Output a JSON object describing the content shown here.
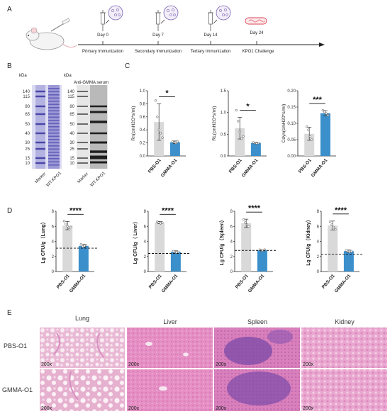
{
  "panelA": {
    "letter": "A",
    "days": [
      "Day 0",
      "Day 7",
      "Day 14",
      "Day 24"
    ],
    "stages": [
      "Primary Immunization",
      "Secondary Immunization",
      "Tertiary Immunization",
      "KPO1 Challenge"
    ]
  },
  "panelB": {
    "letter": "B",
    "kda_label": "kDa",
    "kda_ticks": [
      "140",
      "115",
      "80",
      "65",
      "50",
      "40",
      "30",
      "25",
      "15",
      "10"
    ],
    "gel1_lanes": [
      "Marker",
      "WT-KPO1"
    ],
    "gel2_title": "Anti-GMMA serum",
    "gel2_lanes": [
      "Marker",
      "WT-KPO1"
    ]
  },
  "panelC": {
    "letter": "C"
  },
  "panelD": {
    "letter": "D"
  },
  "panelE": {
    "letter": "E",
    "columns": [
      "Lung",
      "Liver",
      "Spleen",
      "Kidney"
    ],
    "rows": [
      "PBS-O1",
      "GMMA-O1"
    ],
    "magnification": "200x"
  },
  "chart_data": [
    {
      "type": "bar",
      "panel": "C",
      "categories": [
        "PBS-O1",
        "GMMA-O1"
      ],
      "values": [
        0.52,
        0.21
      ],
      "ylabel": "Rn(cmH2O*s/ml)",
      "ylim": [
        0,
        1.0
      ],
      "yticks": [
        "0.0",
        "0.2",
        "0.4",
        "0.6",
        "0.8",
        "1.0"
      ],
      "significance": "*",
      "colors": [
        "#d9d9d9",
        "#3b8fcb"
      ]
    },
    {
      "type": "bar",
      "panel": "C",
      "categories": [
        "PBS-O1",
        "GMMA-O1"
      ],
      "values": [
        0.64,
        0.3
      ],
      "ylabel": "RL(cmH2O*s/ml)",
      "ylim": [
        0,
        1.5
      ],
      "yticks": [
        "0.0",
        "0.5",
        "1.0",
        "1.5"
      ],
      "significance": "*",
      "colors": [
        "#d9d9d9",
        "#3b8fcb"
      ]
    },
    {
      "type": "bar",
      "panel": "C",
      "categories": [
        "PBS-O1",
        "GMMA-O1"
      ],
      "values": [
        0.068,
        0.131
      ],
      "ylabel": "Cdyn(cmH20*s/ml)",
      "ylim": [
        0,
        0.2
      ],
      "yticks": [
        "0.00",
        "0.05",
        "0.10",
        "0.15",
        "0.20"
      ],
      "significance": "***",
      "colors": [
        "#d9d9d9",
        "#3b8fcb"
      ]
    },
    {
      "type": "bar",
      "panel": "D",
      "categories": [
        "PBS-O1",
        "GMMA-O1"
      ],
      "values": [
        6.1,
        3.4
      ],
      "ylabel": "Lg CFU/g（Lung）",
      "ylim": [
        0,
        8
      ],
      "yticks": [
        "0",
        "2",
        "4",
        "6",
        "8"
      ],
      "threshold": 3.1,
      "significance": "****",
      "colors": [
        "#d9d9d9",
        "#3b8fcb"
      ]
    },
    {
      "type": "bar",
      "panel": "D",
      "categories": [
        "PBS-O1",
        "GMMA-O1"
      ],
      "values": [
        6.5,
        2.6
      ],
      "ylabel": "Lg CFU/g（ Liver）",
      "ylim": [
        0,
        8
      ],
      "yticks": [
        "0",
        "2",
        "4",
        "6",
        "8"
      ],
      "threshold": 2.4,
      "significance": "****",
      "colors": [
        "#d9d9d9",
        "#3b8fcb"
      ]
    },
    {
      "type": "bar",
      "panel": "D",
      "categories": [
        "PBS-O1",
        "GMMA-O1"
      ],
      "values": [
        6.4,
        2.8
      ],
      "ylabel": "Lg CFU/g（Spleen）",
      "ylim": [
        0,
        8
      ],
      "yticks": [
        "0",
        "2",
        "4",
        "6",
        "8"
      ],
      "threshold": 2.8,
      "significance": "****",
      "colors": [
        "#d9d9d9",
        "#3b8fcb"
      ]
    },
    {
      "type": "bar",
      "panel": "D",
      "categories": [
        "PBS-O1",
        "GMMA-O1"
      ],
      "values": [
        6.1,
        2.7
      ],
      "ylabel": "Lg CFU/g（Kidney）",
      "ylim": [
        0,
        8
      ],
      "yticks": [
        "0",
        "2",
        "4",
        "6",
        "8"
      ],
      "threshold": 2.3,
      "significance": "****",
      "colors": [
        "#d9d9d9",
        "#3b8fcb"
      ]
    }
  ]
}
